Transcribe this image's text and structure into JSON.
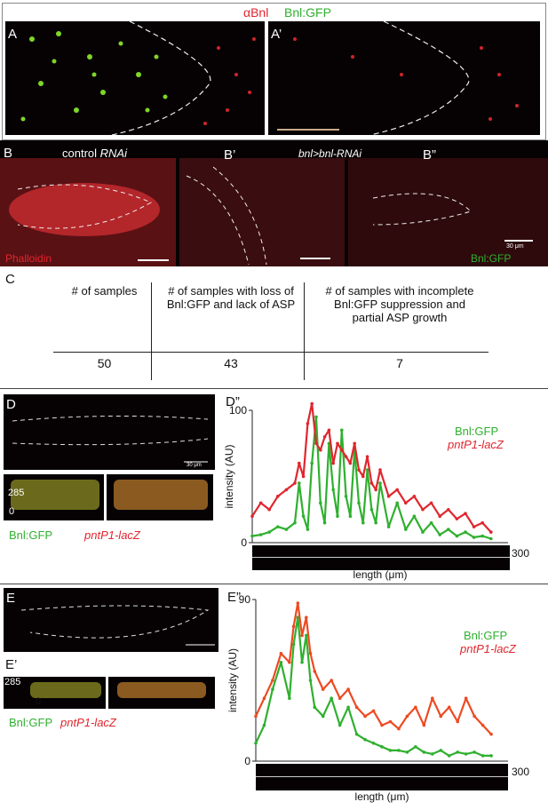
{
  "header": {
    "anti_bnl": "αBnl",
    "bnl_gfp": "Bnl:GFP"
  },
  "panelA": {
    "label_a": "A",
    "label_a2": "A’"
  },
  "panelB": {
    "label_b": "B",
    "label_b2": "B’",
    "label_b3": "B”",
    "control": "control",
    "rnai": "RNAi",
    "genotype": "bnl>bnl-RNAi",
    "phalloidin": "Phalloidin",
    "bnl_gfp": "Bnl:GFP",
    "scale": "30 μm"
  },
  "panelC": {
    "label": "C",
    "headers": [
      "# of samples",
      "# of samples with loss of Bnl:GFP and lack of ASP",
      "# of samples with incomplete Bnl:GFP suppression and partial ASP growth"
    ],
    "values": [
      "50",
      "43",
      "7"
    ]
  },
  "panelD": {
    "label_d": "D",
    "label_d2": "D’",
    "label_d3": "D”",
    "y_top": "285",
    "y_zero": "0",
    "legend_gfp": "Bnl:GFP",
    "legend_lacz": "pntP1-lacZ",
    "scale": "30 μm"
  },
  "panelE": {
    "label_e": "E",
    "label_e2": "E’",
    "label_e3": "E”",
    "y_top": "285",
    "y_zero": "0",
    "legend_gfp": "Bnl:GFP",
    "legend_lacz": "pntP1-lacZ"
  },
  "chart_data": [
    {
      "type": "line",
      "panel": "D”",
      "ylabel": "intensity (AU)",
      "xlabel": "length (μm)",
      "ylim": [
        0,
        100
      ],
      "xlim": [
        0,
        300
      ],
      "yticks": [
        "0",
        "100"
      ],
      "xticks": [
        "300"
      ],
      "series": [
        {
          "name": "Bnl:GFP",
          "color": "#2fb02f",
          "x": [
            0,
            10,
            20,
            30,
            40,
            50,
            55,
            60,
            65,
            70,
            75,
            80,
            85,
            90,
            95,
            100,
            105,
            110,
            115,
            120,
            125,
            130,
            135,
            140,
            145,
            150,
            160,
            170,
            180,
            190,
            200,
            210,
            220,
            230,
            240,
            250,
            260,
            270,
            280
          ],
          "values": [
            5,
            6,
            8,
            12,
            10,
            15,
            45,
            20,
            10,
            60,
            95,
            30,
            15,
            75,
            40,
            20,
            85,
            35,
            20,
            70,
            30,
            15,
            55,
            25,
            15,
            45,
            12,
            30,
            10,
            20,
            8,
            15,
            6,
            10,
            5,
            8,
            4,
            5,
            3
          ]
        },
        {
          "name": "pntP1-lacZ",
          "color": "#e0262e",
          "x": [
            0,
            10,
            20,
            30,
            40,
            50,
            55,
            60,
            65,
            70,
            75,
            80,
            85,
            90,
            95,
            100,
            105,
            110,
            115,
            120,
            125,
            130,
            135,
            140,
            145,
            150,
            160,
            170,
            180,
            190,
            200,
            210,
            220,
            230,
            240,
            250,
            260,
            270,
            280
          ],
          "values": [
            20,
            30,
            25,
            35,
            40,
            45,
            60,
            50,
            90,
            105,
            75,
            70,
            80,
            85,
            60,
            75,
            70,
            65,
            60,
            75,
            55,
            50,
            65,
            45,
            40,
            55,
            35,
            40,
            30,
            35,
            25,
            30,
            20,
            25,
            18,
            22,
            12,
            15,
            8
          ]
        }
      ]
    },
    {
      "type": "line",
      "panel": "E”",
      "ylabel": "intensity (AU)",
      "xlabel": "length (μm)",
      "ylim": [
        0,
        90
      ],
      "xlim": [
        0,
        300
      ],
      "yticks": [
        "0",
        "90"
      ],
      "xticks": [
        "300"
      ],
      "series": [
        {
          "name": "Bnl:GFP",
          "color": "#2fb02f",
          "x": [
            0,
            10,
            20,
            30,
            40,
            45,
            50,
            55,
            60,
            65,
            70,
            80,
            90,
            100,
            110,
            120,
            130,
            140,
            150,
            160,
            170,
            180,
            190,
            200,
            210,
            220,
            230,
            240,
            250,
            260,
            270,
            280
          ],
          "values": [
            10,
            20,
            40,
            55,
            35,
            65,
            80,
            55,
            70,
            45,
            30,
            25,
            35,
            20,
            30,
            15,
            12,
            10,
            8,
            6,
            6,
            5,
            8,
            5,
            4,
            6,
            3,
            5,
            4,
            5,
            3,
            3
          ]
        },
        {
          "name": "pntP1-lacZ",
          "color": "#ee4a22",
          "x": [
            0,
            10,
            20,
            30,
            40,
            45,
            50,
            55,
            60,
            65,
            70,
            80,
            90,
            100,
            110,
            120,
            130,
            140,
            150,
            160,
            170,
            180,
            190,
            200,
            210,
            220,
            230,
            240,
            250,
            260,
            270,
            280
          ],
          "values": [
            25,
            35,
            45,
            60,
            55,
            75,
            88,
            70,
            80,
            60,
            50,
            40,
            45,
            35,
            40,
            30,
            25,
            28,
            20,
            22,
            18,
            25,
            30,
            20,
            35,
            25,
            30,
            22,
            35,
            25,
            20,
            15
          ]
        }
      ]
    }
  ]
}
